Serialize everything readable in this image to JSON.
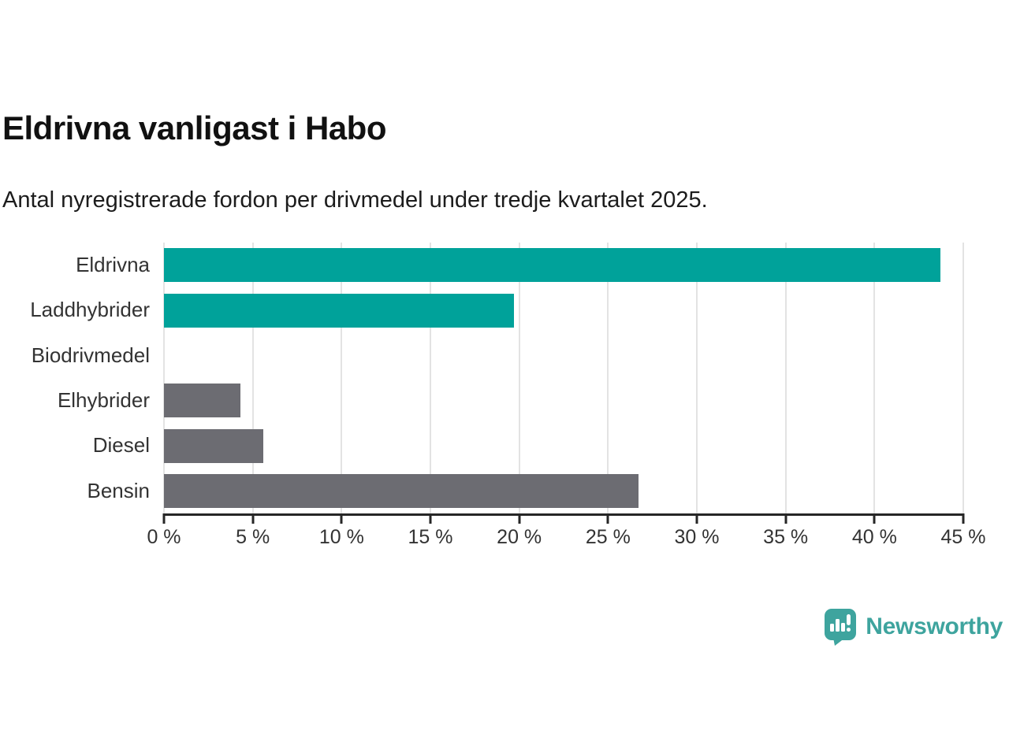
{
  "header": {
    "title": "Eldrivna vanligast i Habo",
    "subtitle": "Antal nyregistrerade fordon per drivmedel under tredje kvartalet 2025."
  },
  "chart_data": {
    "type": "bar",
    "orientation": "horizontal",
    "title": "Eldrivna vanligast i Habo",
    "categories": [
      "Eldrivna",
      "Laddhybrider",
      "Biodrivmedel",
      "Elhybrider",
      "Diesel",
      "Bensin"
    ],
    "values": [
      43.7,
      19.7,
      0,
      4.3,
      5.6,
      26.7
    ],
    "value_unit": "%",
    "bar_colors": [
      "#00a29a",
      "#00a29a",
      "#6c6c72",
      "#6c6c72",
      "#6c6c72",
      "#6c6c72"
    ],
    "xlim": [
      0,
      45
    ],
    "x_ticks": [
      0,
      5,
      10,
      15,
      20,
      25,
      30,
      35,
      40,
      45
    ],
    "x_tick_labels": [
      "0 %",
      "5 %",
      "10 %",
      "15 %",
      "20 %",
      "25 %",
      "30 %",
      "35 %",
      "40 %",
      "45 %"
    ],
    "grid": true,
    "legend": false
  },
  "branding": {
    "name": "Newsworthy",
    "icon": "newsworthy-speech-bubble-chart-icon",
    "color": "#3ea49e"
  },
  "colors": {
    "highlight": "#00a29a",
    "muted": "#6c6c72",
    "axis": "#262626",
    "gridline": "#e3e3e3"
  }
}
